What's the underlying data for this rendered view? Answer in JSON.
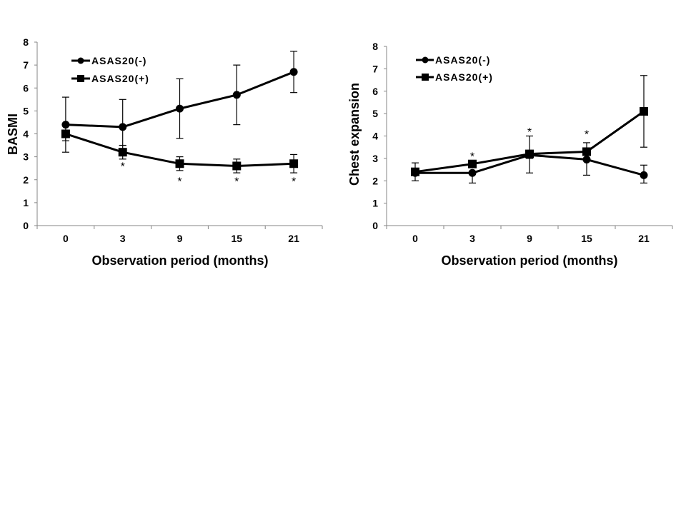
{
  "chart_data": [
    {
      "type": "line",
      "title": "",
      "xlabel": "Observation period (months)",
      "ylabel": "BASMI",
      "categories": [
        "0",
        "3",
        "9",
        "15",
        "21"
      ],
      "yticks": [
        "0",
        "1",
        "2",
        "3",
        "4",
        "5",
        "6",
        "7",
        "8"
      ],
      "ylim": [
        0,
        8
      ],
      "grid": false,
      "legend": "top-left",
      "series": [
        {
          "name": "ASAS20(-)",
          "marker": "circle",
          "values": [
            4.4,
            4.3,
            5.1,
            5.7,
            6.7
          ],
          "error_upper": [
            5.6,
            5.5,
            6.4,
            7.0,
            7.6
          ],
          "error_lower": [
            3.7,
            3.5,
            3.8,
            4.4,
            5.8
          ]
        },
        {
          "name": "ASAS20(+)",
          "marker": "square",
          "values": [
            4.0,
            3.2,
            2.7,
            2.6,
            2.7
          ],
          "error_upper": [
            4.0,
            3.5,
            3.0,
            2.9,
            3.1
          ],
          "error_lower": [
            3.2,
            2.9,
            2.4,
            2.3,
            2.3
          ]
        }
      ],
      "annotations": [
        {
          "text": "*",
          "category": "3",
          "y": 2.6
        },
        {
          "text": "*",
          "category": "9",
          "y": 1.95
        },
        {
          "text": "*",
          "category": "15",
          "y": 1.95
        },
        {
          "text": "*",
          "category": "21",
          "y": 1.95
        }
      ]
    },
    {
      "type": "line",
      "title": "",
      "xlabel": "Observation period (months)",
      "ylabel": "Chest expansion",
      "categories": [
        "0",
        "3",
        "9",
        "15",
        "21"
      ],
      "yticks": [
        "0",
        "1",
        "2",
        "3",
        "4",
        "5",
        "6",
        "7",
        "8"
      ],
      "ylim": [
        0,
        8
      ],
      "grid": false,
      "legend": "top-left",
      "series": [
        {
          "name": "ASAS20(-)",
          "marker": "circle",
          "values": [
            2.35,
            2.35,
            3.15,
            2.95,
            2.25
          ],
          "error_upper": [
            2.35,
            2.35,
            4.0,
            2.95,
            2.7
          ],
          "error_lower": [
            2.0,
            1.9,
            2.35,
            2.25,
            1.9
          ]
        },
        {
          "name": "ASAS20(+)",
          "marker": "square",
          "values": [
            2.4,
            2.75,
            3.2,
            3.3,
            5.1
          ],
          "error_upper": [
            2.8,
            2.75,
            3.2,
            3.7,
            6.7
          ],
          "error_lower": [
            2.4,
            2.75,
            3.0,
            3.0,
            3.5
          ]
        }
      ],
      "annotations": [
        {
          "text": "*",
          "category": "3",
          "y": 3.1
        },
        {
          "text": "*",
          "category": "9",
          "y": 4.2
        },
        {
          "text": "*",
          "category": "15",
          "y": 4.1
        }
      ]
    }
  ]
}
